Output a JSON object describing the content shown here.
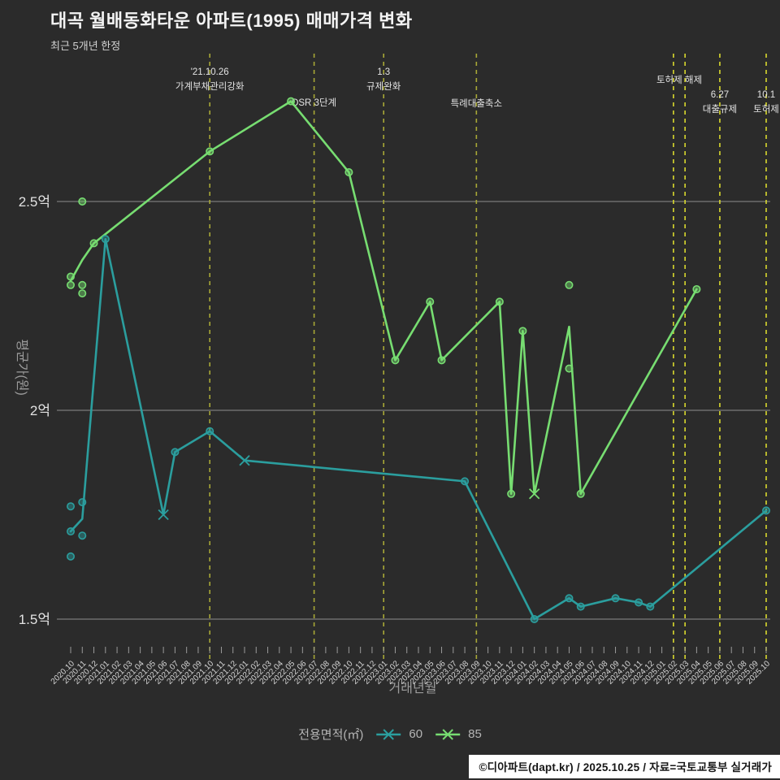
{
  "header": {
    "title": "대곡 월배동화타운 아파트(1995) 매매가격 변화",
    "subtitle": "최근 5개년 한정"
  },
  "footer": {
    "credit": "©디아파트(dapt.kr) / 2025.10.25 / 자료=국토교통부 실거래가"
  },
  "legend": {
    "label": "전용면적(㎡)",
    "items": [
      {
        "label": "60",
        "color": "#2b9e9e"
      },
      {
        "label": "85",
        "color": "#77dd71"
      }
    ]
  },
  "colors": {
    "background": "#2b2b2b",
    "grid": "#8d8d8d",
    "tick": "#9a9a9a",
    "event_line_olive": "#a8a836",
    "event_line_yellow": "#d9d92e",
    "series_60": "#2b9e9e",
    "series_85": "#77dd71"
  },
  "chart_data": {
    "type": "line",
    "title": "대곡 월배동화타운 아파트(1995) 매매가격 변화",
    "subtitle": "최근 5개년 한정",
    "xlabel": "거래년월",
    "ylabel": "평균가(원)",
    "unit": "억원",
    "ylim": [
      1.41,
      2.86
    ],
    "grid": "horizontal",
    "legend_position": "bottom",
    "yticks": [
      {
        "value": 1.5,
        "label": "1.5억"
      },
      {
        "value": 2.0,
        "label": "2억"
      },
      {
        "value": 2.5,
        "label": "2.5억"
      }
    ],
    "categories": [
      "2020.10",
      "2020.11",
      "2020.12",
      "2021.01",
      "2021.02",
      "2021.03",
      "2021.04",
      "2021.05",
      "2021.06",
      "2021.07",
      "2021.08",
      "2021.09",
      "2021.10",
      "2021.11",
      "2021.12",
      "2022.01",
      "2022.02",
      "2022.03",
      "2022.04",
      "2022.05",
      "2022.06",
      "2022.07",
      "2022.08",
      "2022.09",
      "2022.10",
      "2022.11",
      "2022.12",
      "2023.01",
      "2023.02",
      "2023.03",
      "2023.04",
      "2023.05",
      "2023.06",
      "2023.07",
      "2023.08",
      "2023.09",
      "2023.10",
      "2023.11",
      "2023.12",
      "2024.01",
      "2024.02",
      "2024.03",
      "2024.04",
      "2024.05",
      "2024.06",
      "2024.07",
      "2024.08",
      "2024.09",
      "2024.10",
      "2024.11",
      "2024.12",
      "2025.01",
      "2025.02",
      "2025.03",
      "2025.04",
      "2025.05",
      "2025.06",
      "2025.07",
      "2025.08",
      "2025.09",
      "2025.10"
    ],
    "series": [
      {
        "name": "60",
        "color": "#2b9e9e",
        "points": [
          [
            "2020.10",
            1.71
          ],
          [
            "2020.11",
            1.74
          ],
          [
            "2021.01",
            2.41
          ],
          [
            "2021.06",
            1.75
          ],
          [
            "2021.07",
            1.9
          ],
          [
            "2021.10",
            1.95
          ],
          [
            "2022.01",
            1.88
          ],
          [
            "2023.08",
            1.83
          ],
          [
            "2024.02",
            1.5
          ],
          [
            "2024.05",
            1.55
          ],
          [
            "2024.06",
            1.53
          ],
          [
            "2024.09",
            1.55
          ],
          [
            "2024.11",
            1.54
          ],
          [
            "2024.12",
            1.53
          ],
          [
            "2025.10",
            1.76
          ]
        ]
      },
      {
        "name": "85",
        "color": "#77dd71",
        "points": [
          [
            "2020.10",
            2.31
          ],
          [
            "2020.11",
            2.36
          ],
          [
            "2020.12",
            2.4
          ],
          [
            "2021.10",
            2.62
          ],
          [
            "2022.05",
            2.74
          ],
          [
            "2022.10",
            2.57
          ],
          [
            "2023.02",
            2.12
          ],
          [
            "2023.05",
            2.26
          ],
          [
            "2023.06",
            2.12
          ],
          [
            "2023.11",
            2.26
          ],
          [
            "2023.12",
            1.8
          ],
          [
            "2024.01",
            2.19
          ],
          [
            "2024.02",
            1.8
          ],
          [
            "2024.05",
            2.2
          ],
          [
            "2024.06",
            1.8
          ],
          [
            "2025.04",
            2.29
          ]
        ]
      }
    ],
    "transactions": [
      {
        "series": "60",
        "month": "2020.10",
        "value": 1.77
      },
      {
        "series": "60",
        "month": "2020.10",
        "value": 1.71
      },
      {
        "series": "60",
        "month": "2020.10",
        "value": 1.65
      },
      {
        "series": "60",
        "month": "2020.11",
        "value": 1.78
      },
      {
        "series": "60",
        "month": "2020.11",
        "value": 1.7
      },
      {
        "series": "60",
        "month": "2021.01",
        "value": 2.41
      },
      {
        "series": "60",
        "month": "2021.07",
        "value": 1.9
      },
      {
        "series": "60",
        "month": "2021.10",
        "value": 1.95
      },
      {
        "series": "60",
        "month": "2023.08",
        "value": 1.83
      },
      {
        "series": "60",
        "month": "2024.02",
        "value": 1.5
      },
      {
        "series": "60",
        "month": "2024.05",
        "value": 1.55
      },
      {
        "series": "60",
        "month": "2024.06",
        "value": 1.53
      },
      {
        "series": "60",
        "month": "2024.09",
        "value": 1.55
      },
      {
        "series": "60",
        "month": "2024.11",
        "value": 1.54
      },
      {
        "series": "60",
        "month": "2024.12",
        "value": 1.53
      },
      {
        "series": "60",
        "month": "2025.10",
        "value": 1.76
      },
      {
        "series": "85",
        "month": "2020.10",
        "value": 2.32
      },
      {
        "series": "85",
        "month": "2020.10",
        "value": 2.3
      },
      {
        "series": "85",
        "month": "2020.11",
        "value": 2.5
      },
      {
        "series": "85",
        "month": "2020.11",
        "value": 2.3
      },
      {
        "series": "85",
        "month": "2020.11",
        "value": 2.28
      },
      {
        "series": "85",
        "month": "2020.12",
        "value": 2.4
      },
      {
        "series": "85",
        "month": "2021.10",
        "value": 2.62
      },
      {
        "series": "85",
        "month": "2022.05",
        "value": 2.74
      },
      {
        "series": "85",
        "month": "2022.10",
        "value": 2.57
      },
      {
        "series": "85",
        "month": "2023.02",
        "value": 2.12
      },
      {
        "series": "85",
        "month": "2023.05",
        "value": 2.26
      },
      {
        "series": "85",
        "month": "2023.06",
        "value": 2.12
      },
      {
        "series": "85",
        "month": "2023.11",
        "value": 2.26
      },
      {
        "series": "85",
        "month": "2023.12",
        "value": 1.8
      },
      {
        "series": "85",
        "month": "2024.01",
        "value": 2.19
      },
      {
        "series": "85",
        "month": "2024.05",
        "value": 2.3
      },
      {
        "series": "85",
        "month": "2024.05",
        "value": 2.1
      },
      {
        "series": "85",
        "month": "2024.06",
        "value": 1.8
      },
      {
        "series": "85",
        "month": "2025.04",
        "value": 2.29
      }
    ],
    "x_markers": [
      {
        "series": "60",
        "month": "2021.06",
        "value": 1.75
      },
      {
        "series": "60",
        "month": "2022.01",
        "value": 1.88
      },
      {
        "series": "85",
        "month": "2024.02",
        "value": 1.8
      }
    ],
    "event_lines": [
      {
        "month": "2021.10",
        "bright": false
      },
      {
        "month": "2022.07",
        "bright": false
      },
      {
        "month": "2023.01",
        "bright": false
      },
      {
        "month": "2023.09",
        "bright": false
      },
      {
        "month": "2025.02",
        "bright": true
      },
      {
        "month": "2025.03",
        "bright": true
      },
      {
        "month": "2025.06",
        "bright": true
      },
      {
        "month": "2025.10",
        "bright": true
      }
    ],
    "event_labels": [
      {
        "months": [
          "2021.10"
        ],
        "rows": [
          "'21.10.26",
          "가계부채관리강화"
        ],
        "top": 82
      },
      {
        "months": [
          "2022.07"
        ],
        "rows": [
          "DSR 3단계"
        ],
        "top": 120
      },
      {
        "months": [
          "2023.01"
        ],
        "rows": [
          "1.3",
          "규제완화"
        ],
        "top": 82
      },
      {
        "months": [
          "2023.09"
        ],
        "rows": [
          "특례대출축소"
        ],
        "top": 121
      },
      {
        "months": [
          "2025.02",
          "2025.03"
        ],
        "rows": [
          "토허제 해제"
        ],
        "top": 92
      },
      {
        "months": [
          "2025.06"
        ],
        "rows": [
          "6.27",
          "대출규제"
        ],
        "top": 110
      },
      {
        "months": [
          "2025.10"
        ],
        "rows": [
          "10.1",
          "토허제"
        ],
        "top": 110
      }
    ]
  }
}
